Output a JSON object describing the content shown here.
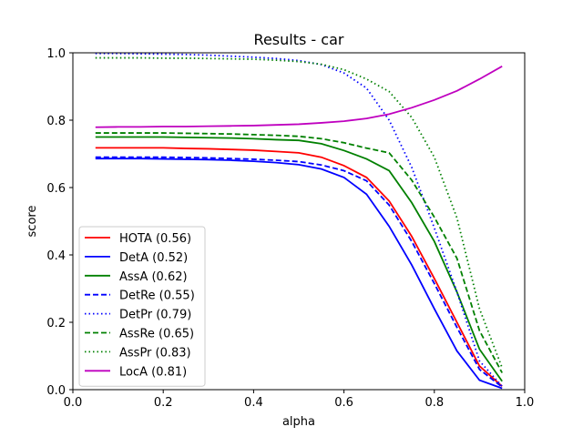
{
  "chart_data": {
    "type": "line",
    "title": "Results - car",
    "xlabel": "alpha",
    "ylabel": "score",
    "xlim": [
      0.0,
      1.0
    ],
    "ylim": [
      0.0,
      1.0
    ],
    "x_ticks": [
      "0.0",
      "0.2",
      "0.4",
      "0.6",
      "0.8",
      "1.0"
    ],
    "y_ticks": [
      "0.0",
      "0.2",
      "0.4",
      "0.6",
      "0.8",
      "1.0"
    ],
    "grid": false,
    "legend_position": "lower-left",
    "x": [
      0.05,
      0.1,
      0.15,
      0.2,
      0.25,
      0.3,
      0.35,
      0.4,
      0.45,
      0.5,
      0.55,
      0.6,
      0.65,
      0.7,
      0.75,
      0.8,
      0.85,
      0.9,
      0.95
    ],
    "series": [
      {
        "name": "HOTA (0.56)",
        "color": "#ff0000",
        "style": "solid",
        "values": [
          0.718,
          0.718,
          0.718,
          0.718,
          0.716,
          0.715,
          0.713,
          0.711,
          0.707,
          0.703,
          0.69,
          0.665,
          0.63,
          0.56,
          0.455,
          0.33,
          0.2,
          0.07,
          0.01
        ]
      },
      {
        "name": "DetA (0.52)",
        "color": "#0000ff",
        "style": "solid",
        "values": [
          0.686,
          0.686,
          0.686,
          0.685,
          0.684,
          0.683,
          0.681,
          0.678,
          0.674,
          0.668,
          0.655,
          0.63,
          0.58,
          0.485,
          0.37,
          0.24,
          0.115,
          0.028,
          0.004
        ]
      },
      {
        "name": "AssA (0.62)",
        "color": "#008000",
        "style": "solid",
        "values": [
          0.75,
          0.75,
          0.75,
          0.75,
          0.749,
          0.748,
          0.747,
          0.745,
          0.742,
          0.74,
          0.73,
          0.71,
          0.685,
          0.65,
          0.555,
          0.44,
          0.29,
          0.12,
          0.025
        ]
      },
      {
        "name": "DetRe (0.55)",
        "color": "#0000ff",
        "style": "dashed",
        "values": [
          0.69,
          0.69,
          0.69,
          0.69,
          0.689,
          0.688,
          0.686,
          0.684,
          0.681,
          0.677,
          0.667,
          0.65,
          0.62,
          0.548,
          0.44,
          0.315,
          0.185,
          0.06,
          0.008
        ]
      },
      {
        "name": "DetPr (0.79)",
        "color": "#0000ff",
        "style": "dotted",
        "values": [
          0.998,
          0.998,
          0.997,
          0.996,
          0.995,
          0.993,
          0.99,
          0.987,
          0.983,
          0.977,
          0.965,
          0.94,
          0.895,
          0.8,
          0.66,
          0.48,
          0.29,
          0.085,
          0.01
        ]
      },
      {
        "name": "AssRe (0.65)",
        "color": "#008000",
        "style": "dashed",
        "values": [
          0.762,
          0.762,
          0.762,
          0.762,
          0.761,
          0.76,
          0.759,
          0.757,
          0.755,
          0.752,
          0.745,
          0.733,
          0.717,
          0.703,
          0.622,
          0.512,
          0.39,
          0.175,
          0.05
        ]
      },
      {
        "name": "AssPr (0.83)",
        "color": "#008000",
        "style": "dotted",
        "values": [
          0.985,
          0.985,
          0.985,
          0.984,
          0.984,
          0.983,
          0.982,
          0.981,
          0.978,
          0.974,
          0.966,
          0.95,
          0.922,
          0.885,
          0.808,
          0.69,
          0.51,
          0.24,
          0.065
        ]
      },
      {
        "name": "LocA (0.81)",
        "color": "#bf00bf",
        "style": "solid",
        "values": [
          0.779,
          0.78,
          0.78,
          0.781,
          0.781,
          0.782,
          0.783,
          0.784,
          0.786,
          0.788,
          0.792,
          0.797,
          0.805,
          0.818,
          0.837,
          0.86,
          0.887,
          0.922,
          0.96
        ]
      }
    ]
  }
}
